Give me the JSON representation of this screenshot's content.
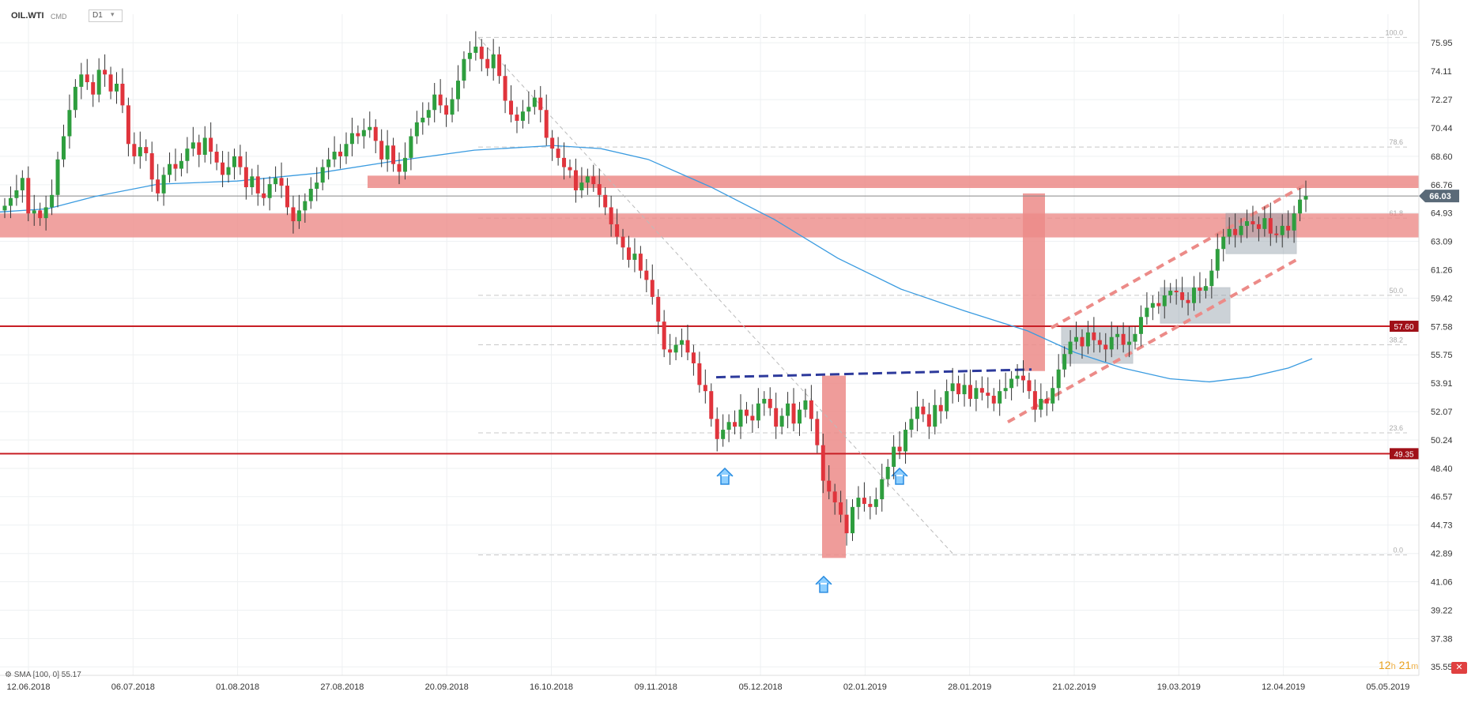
{
  "header": {
    "symbol": "OIL.WTI",
    "instrument_type": "CMD",
    "timeframe": "D1"
  },
  "indicator_label": "SMA [100, 0] 55.17",
  "timer": {
    "hours": "12",
    "h": "h",
    "minutes": "21",
    "m": "m"
  },
  "colors": {
    "up": "#2e9e3e",
    "down": "#e0343c",
    "sma": "#3a9be0",
    "zone": "#ec8b88",
    "level": "#c81e24",
    "box": "#9aa6b0",
    "trend_dash": "#2d3a9c"
  },
  "chart_data": {
    "type": "candlestick",
    "y_ticks": [
      "75.95",
      "74.11",
      "72.27",
      "70.44",
      "68.60",
      "66.76",
      "64.93",
      "63.09",
      "61.26",
      "59.42",
      "57.58",
      "55.75",
      "53.91",
      "52.07",
      "50.24",
      "48.40",
      "46.57",
      "44.73",
      "42.89",
      "41.06",
      "39.22",
      "37.38",
      "35.55"
    ],
    "x_ticks": [
      "12.06.2018",
      "06.07.2018",
      "01.08.2018",
      "27.08.2018",
      "20.09.2018",
      "16.10.2018",
      "09.11.2018",
      "05.12.2018",
      "02.01.2019",
      "28.01.2019",
      "21.02.2019",
      "19.03.2019",
      "12.04.2019",
      "05.05.2019"
    ],
    "current_price": "66.03",
    "horizontal_levels": [
      {
        "price": 57.6,
        "label": "57.60"
      },
      {
        "price": 49.35,
        "label": "49.35"
      }
    ],
    "fib_labels": [
      {
        "price": 76.3,
        "label": "100.0"
      },
      {
        "price": 69.2,
        "label": "78.6"
      },
      {
        "price": 64.6,
        "label": "61.8"
      },
      {
        "price": 59.6,
        "label": "50.0"
      },
      {
        "price": 56.4,
        "label": "38.2"
      },
      {
        "price": 50.7,
        "label": "23.6"
      },
      {
        "price": 42.8,
        "label": "0.0"
      }
    ],
    "candles_note": "Daily OHLC candles of WTI crude, June 2018 – April 2019; close values approximate.",
    "closes": [
      65.4,
      65.9,
      66.4,
      67.2,
      64.9,
      65.1,
      64.6,
      65.3,
      66.1,
      68.4,
      69.9,
      71.6,
      73.1,
      73.9,
      73.4,
      72.6,
      74.2,
      73.9,
      72.8,
      73.3,
      71.9,
      69.4,
      68.6,
      69.2,
      68.8,
      67.1,
      66.2,
      67.4,
      68.1,
      67.8,
      68.3,
      69.1,
      69.5,
      68.7,
      69.8,
      68.9,
      68.2,
      67.4,
      67.9,
      68.6,
      67.9,
      66.6,
      67.3,
      66.2,
      65.9,
      66.8,
      67.2,
      66.7,
      65.3,
      64.4,
      65.1,
      65.7,
      66.5,
      66.9,
      67.9,
      68.4,
      68.9,
      68.6,
      69.4,
      70.1,
      69.9,
      70.3,
      70.5,
      69.6,
      68.4,
      69.3,
      68.1,
      67.6,
      68.5,
      69.9,
      70.8,
      71.1,
      71.6,
      72.6,
      71.9,
      71.3,
      72.3,
      73.5,
      74.9,
      75.3,
      75.7,
      74.9,
      74.3,
      75.2,
      73.8,
      72.2,
      71.3,
      70.9,
      71.5,
      71.8,
      72.4,
      71.6,
      69.8,
      69.1,
      68.5,
      67.9,
      67.7,
      66.4,
      66.9,
      67.3,
      66.8,
      66.1,
      65.3,
      64.2,
      63.4,
      62.7,
      61.9,
      62.3,
      61.2,
      60.6,
      59.5,
      57.9,
      56.1,
      55.9,
      56.4,
      56.7,
      55.9,
      55.2,
      53.8,
      53.4,
      51.6,
      50.3,
      50.9,
      51.4,
      51.1,
      52.2,
      51.8,
      51.5,
      52.6,
      52.9,
      52.3,
      51.1,
      51.8,
      52.6,
      51.3,
      52.2,
      52.8,
      51.6,
      49.9,
      47.6,
      46.9,
      46.2,
      45.4,
      44.2,
      45.9,
      46.5,
      46.1,
      45.9,
      46.4,
      47.7,
      48.5,
      49.8,
      49.5,
      50.9,
      51.6,
      52.4,
      51.9,
      51.1,
      52.5,
      52.1,
      53.4,
      53.9,
      53.2,
      53.8,
      52.9,
      53.6,
      53.3,
      53.1,
      52.6,
      53.4,
      53.6,
      54.2,
      54.4,
      54.1,
      53.4,
      52.2,
      52.9,
      52.6,
      53.6,
      54.8,
      55.8,
      56.6,
      56.9,
      56.3,
      57.2,
      56.7,
      56.4,
      56.1,
      56.9,
      57.1,
      56.4,
      56.6,
      57.1,
      58.2,
      58.8,
      59.1,
      58.9,
      59.6,
      59.9,
      59.8,
      59.3,
      59.1,
      60.1,
      59.9,
      60.2,
      61.2,
      62.6,
      63.4,
      63.9,
      63.5,
      64.1,
      64.4,
      64.2,
      63.9,
      64.6,
      63.6,
      63.5,
      64.1,
      63.8,
      64.9,
      65.8,
      66.03
    ]
  }
}
